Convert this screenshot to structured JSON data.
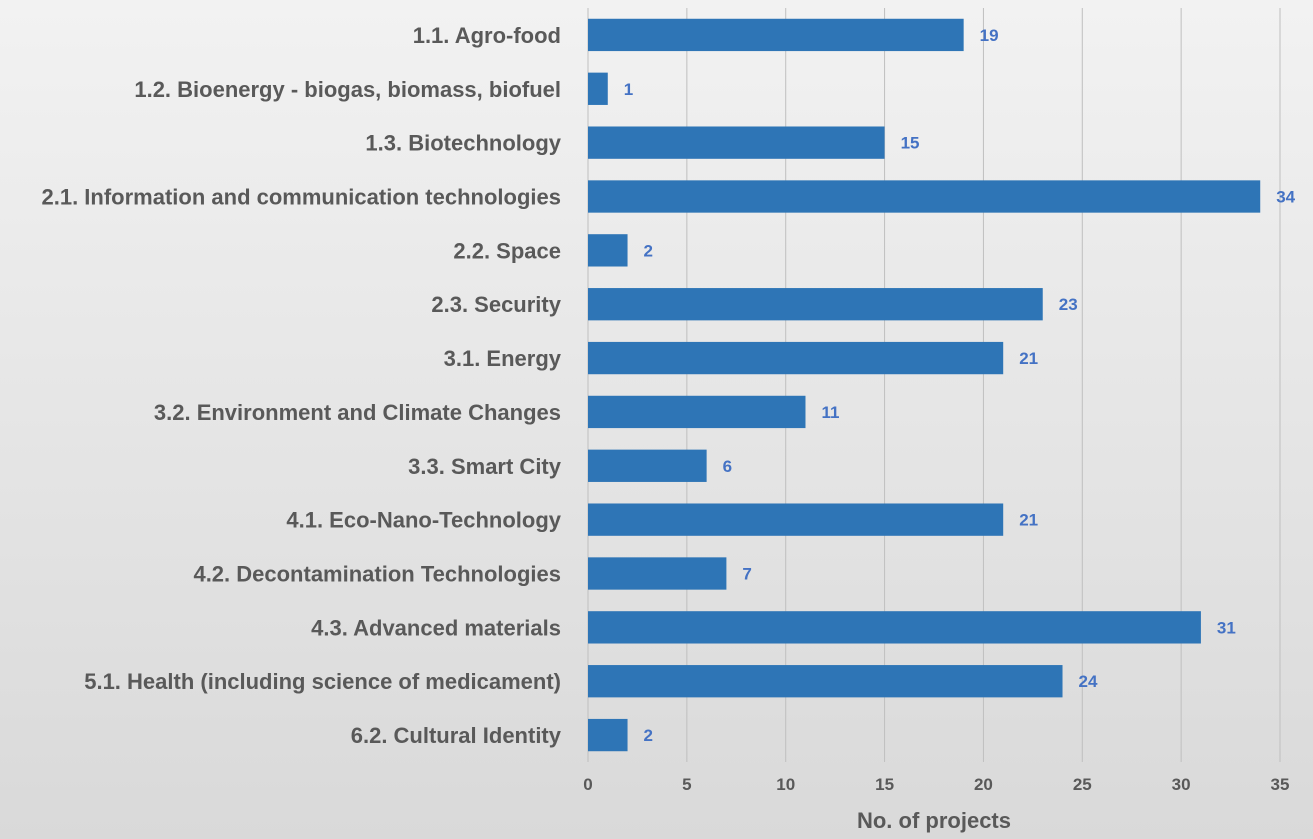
{
  "chart_data": {
    "type": "bar",
    "orientation": "horizontal",
    "categories": [
      "1.1. Agro-food",
      "1.2. Bioenergy - biogas, biomass, biofuel",
      "1.3. Biotechnology",
      "2.1. Information and communication technologies",
      "2.2. Space",
      "2.3. Security",
      "3.1. Energy",
      "3.2. Environment and Climate Changes",
      "3.3. Smart City",
      "4.1. Eco-Nano-Technology",
      "4.2. Decontamination Technologies",
      "4.3. Advanced materials",
      "5.1. Health (including science of medicament)",
      "6.2. Cultural Identity"
    ],
    "values": [
      19,
      1,
      15,
      34,
      2,
      23,
      21,
      11,
      6,
      21,
      7,
      31,
      24,
      2
    ],
    "title": "",
    "xlabel": "No. of projects",
    "ylabel": "",
    "xlim": [
      0,
      35
    ],
    "x_ticks": [
      0,
      5,
      10,
      15,
      20,
      25,
      30,
      35
    ],
    "grid": true,
    "legend": "none",
    "data_labels": true,
    "colors": {
      "bar": "#2e75b6",
      "data_label": "#4472c4",
      "text": "#595959",
      "grid": "#bfbfbf"
    }
  }
}
